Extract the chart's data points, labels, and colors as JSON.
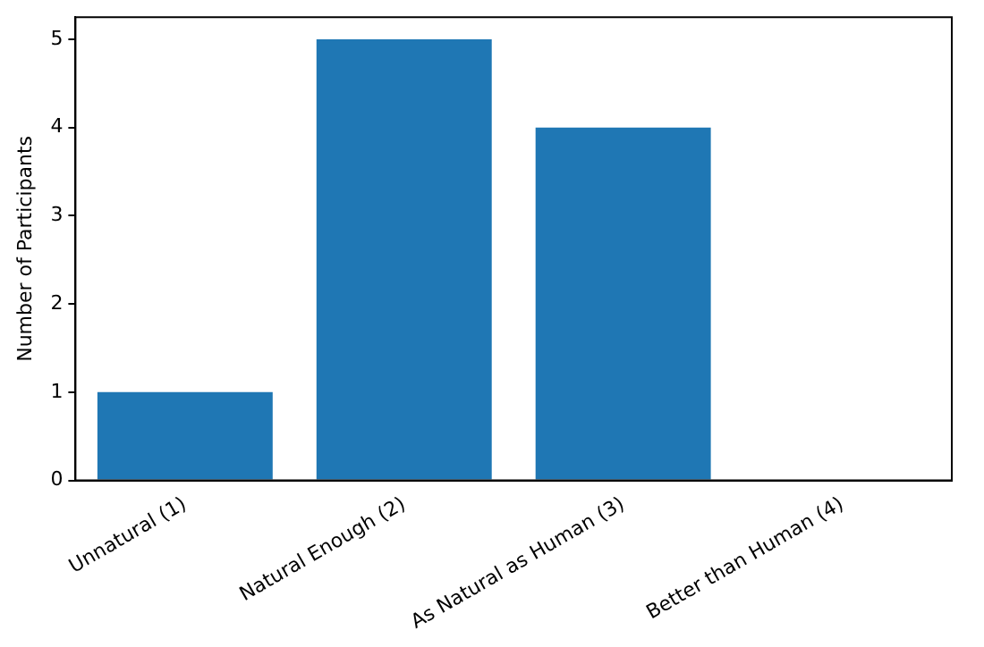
{
  "chart_data": {
    "type": "bar",
    "ylabel": "Number of Participants",
    "categories": [
      "Unnatural (1)",
      "Natural Enough (2)",
      "As Natural as Human (3)",
      "Better than Human (4)"
    ],
    "values": [
      1,
      5,
      4,
      0
    ],
    "color": "#1f77b4",
    "ylim": [
      0,
      5.25
    ],
    "yticks": [
      0,
      1,
      2,
      3,
      4,
      5
    ],
    "grid": false,
    "legend": false
  }
}
